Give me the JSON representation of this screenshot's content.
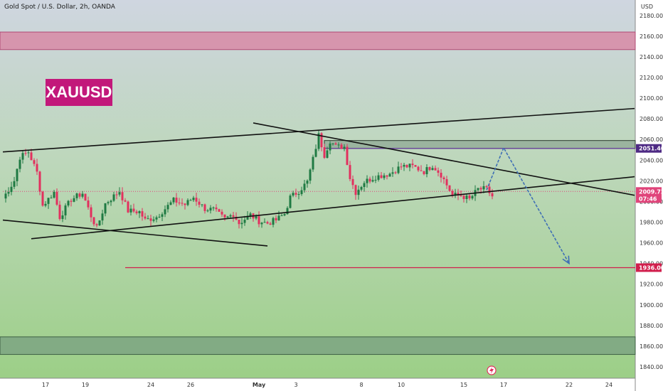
{
  "header": {
    "symbol": "Gold Spot / U.S. Dollar, 2h, OANDA",
    "currency": "USD",
    "badge": "XAUUSD"
  },
  "chart_data": {
    "type": "candlestick",
    "ylim": [
      1829,
      2195
    ],
    "y_ticks": [
      2180,
      2160,
      2140,
      2120,
      2100,
      2080,
      2060,
      2040,
      2020,
      2000,
      1980,
      1960,
      1940,
      1920,
      1900,
      1880,
      1860,
      1840
    ],
    "y_tick_labels": [
      "2180.000",
      "2160.000",
      "2140.000",
      "2120.000",
      "2100.000",
      "2080.000",
      "2060.000",
      "2040.000",
      "2020.000",
      "2000.000",
      "1980.000",
      "1960.000",
      "1940.000",
      "1920.000",
      "1900.000",
      "1880.000",
      "1860.000",
      "1840.000"
    ],
    "x_ticks": [
      "17",
      "19",
      "24",
      "26",
      "May",
      "3",
      "8",
      "10",
      "15",
      "17",
      "22",
      "24"
    ],
    "x_tick_index": [
      15,
      29,
      52,
      66,
      90,
      103,
      126,
      140,
      162,
      176,
      199,
      213
    ],
    "n_bars": 222,
    "zones": [
      {
        "name": "supply-zone",
        "from": 2147,
        "to": 2164,
        "color": "#d889a6"
      },
      {
        "name": "demand-zone",
        "from": 1852,
        "to": 1869,
        "color": "#7da583"
      },
      {
        "name": "resistance-box",
        "from": 2051.4,
        "to": 2059,
        "start_bar": 113,
        "color": "#6f8a78"
      }
    ],
    "levels": [
      {
        "name": "target-line",
        "price": 1936.0,
        "start_bar": 43,
        "color": "#d11f4d"
      },
      {
        "name": "resistance-line",
        "price": 2051.4,
        "start_bar": 113,
        "color": "#6a3fa0"
      },
      {
        "name": "price-line",
        "price": 2009.725,
        "start_bar": 0,
        "color": "#e0447a"
      }
    ],
    "trendlines": [
      {
        "name": "upper-channel-line",
        "from": [
          0,
          2048
        ],
        "to": [
          222,
          2090
        ]
      },
      {
        "name": "lower-channel-line",
        "from": [
          10,
          1964
        ],
        "to": [
          222,
          2024
        ]
      },
      {
        "name": "falling-trendline",
        "from": [
          88,
          2076
        ],
        "to": [
          222,
          2006
        ]
      },
      {
        "name": "descending-support-line",
        "from": [
          0,
          1982
        ],
        "to": [
          93,
          1957
        ]
      }
    ],
    "projection": [
      [
        170,
        2011
      ],
      [
        176,
        2052
      ],
      [
        199,
        1940
      ]
    ],
    "price_labels": [
      {
        "name": "resistance-label",
        "price": 2051.4,
        "text": "2051.407",
        "bg": "#4e2a84"
      },
      {
        "name": "last-price-label",
        "price": 2009.725,
        "text": "2009.725",
        "sub": "07:46",
        "bg": "#e0447a"
      },
      {
        "name": "target-label",
        "price": 1936.0,
        "text": "1936.000",
        "bg": "#d11f4d"
      }
    ],
    "anchors": [
      [
        0,
        2003
      ],
      [
        4,
        2020
      ],
      [
        6,
        2043
      ],
      [
        9,
        2048
      ],
      [
        12,
        2028
      ],
      [
        14,
        1996
      ],
      [
        18,
        2009
      ],
      [
        20,
        1985
      ],
      [
        24,
        2002
      ],
      [
        28,
        2008
      ],
      [
        31,
        1986
      ],
      [
        33,
        1974
      ],
      [
        36,
        1998
      ],
      [
        41,
        2010
      ],
      [
        44,
        1991
      ],
      [
        48,
        1990
      ],
      [
        50,
        1982
      ],
      [
        54,
        1985
      ],
      [
        57,
        1993
      ],
      [
        60,
        2001
      ],
      [
        64,
        1997
      ],
      [
        67,
        2004
      ],
      [
        71,
        1993
      ],
      [
        74,
        1992
      ],
      [
        78,
        1983
      ],
      [
        81,
        1988
      ],
      [
        83,
        1979
      ],
      [
        87,
        1987
      ],
      [
        90,
        1981
      ],
      [
        93,
        1979
      ],
      [
        96,
        1982
      ],
      [
        99,
        1988
      ],
      [
        101,
        2004
      ],
      [
        104,
        2010
      ],
      [
        107,
        2019
      ],
      [
        109,
        2041
      ],
      [
        111,
        2064
      ],
      [
        113,
        2045
      ],
      [
        115,
        2059
      ],
      [
        117,
        2053
      ],
      [
        120,
        2053
      ],
      [
        122,
        2023
      ],
      [
        124,
        2009
      ],
      [
        127,
        2019
      ],
      [
        131,
        2024
      ],
      [
        136,
        2027
      ],
      [
        140,
        2034
      ],
      [
        144,
        2034
      ],
      [
        148,
        2029
      ],
      [
        151,
        2035
      ],
      [
        154,
        2026
      ],
      [
        158,
        2006
      ],
      [
        161,
        2006
      ],
      [
        164,
        2002
      ],
      [
        167,
        2012
      ],
      [
        170,
        2012
      ],
      [
        172,
        2005
      ]
    ],
    "seed": 7
  }
}
